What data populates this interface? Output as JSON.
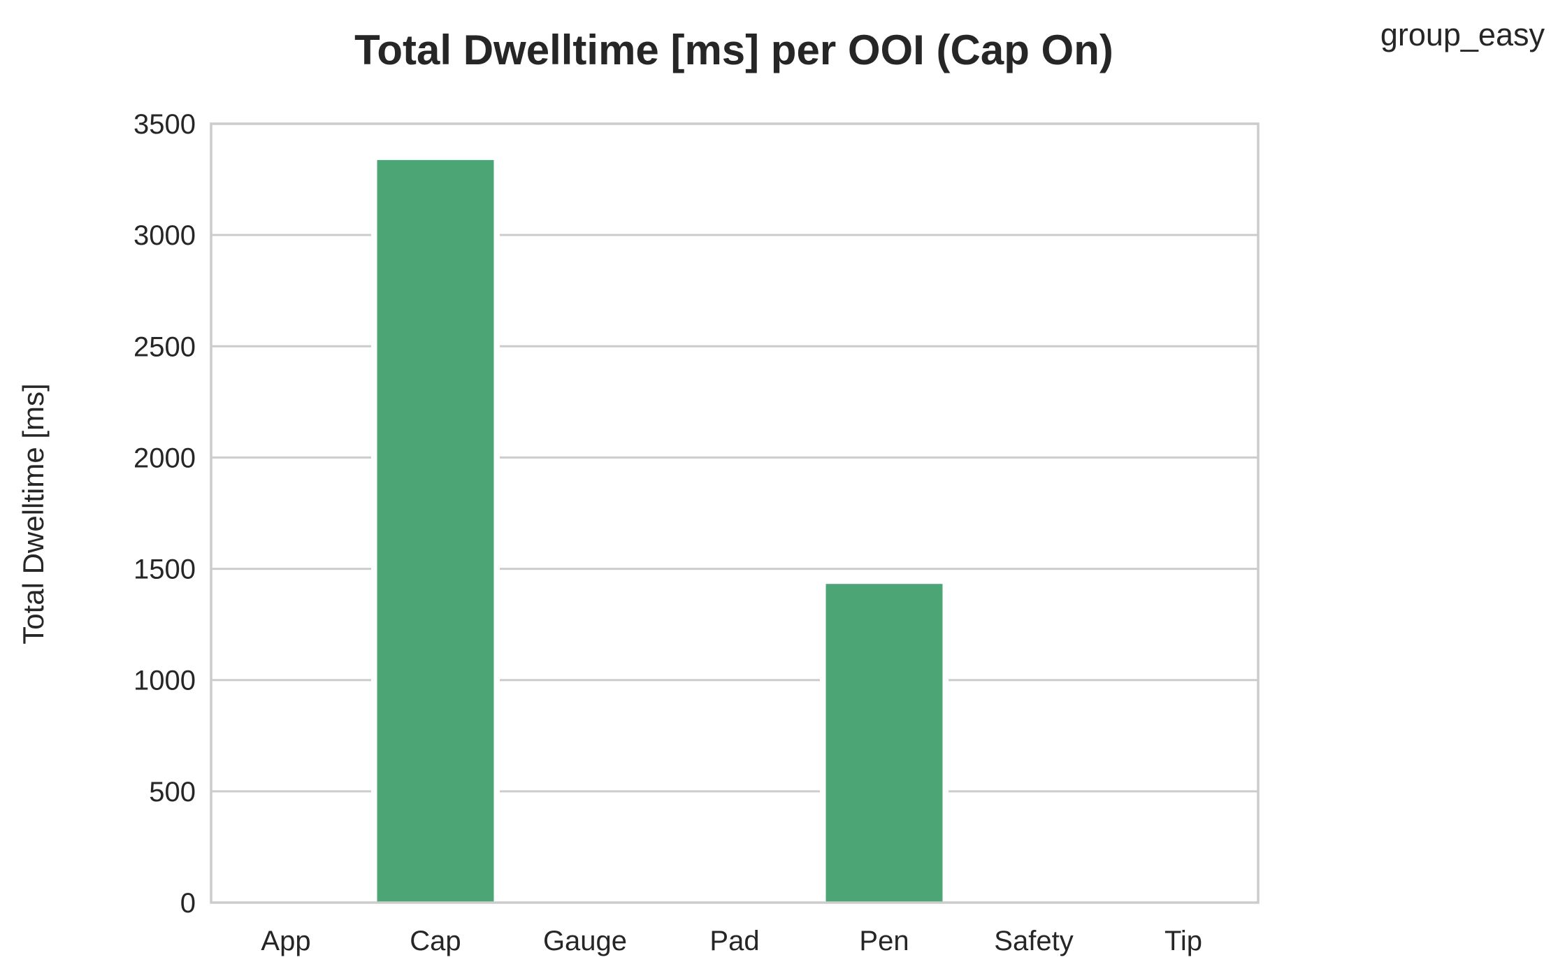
{
  "chart_data": {
    "type": "bar",
    "title": "Total Dwelltime [ms] per OOI (Cap On)",
    "legend_text": "group_easy",
    "legend_placement": "top-right",
    "xlabel": "",
    "ylabel": "Total Dwelltime [ms]",
    "categories": [
      "App",
      "Cap",
      "Gauge",
      "Pad",
      "Pen",
      "Safety",
      "Tip"
    ],
    "values": [
      0,
      3337,
      0,
      0,
      1432,
      0,
      0
    ],
    "ylim": [
      0,
      3500
    ],
    "yticks": [
      0,
      500,
      1000,
      1500,
      2000,
      2500,
      3000,
      3500
    ],
    "grid": true,
    "bar_color": "#4ca574",
    "grid_color": "#cccccc",
    "text_color": "#262626"
  }
}
